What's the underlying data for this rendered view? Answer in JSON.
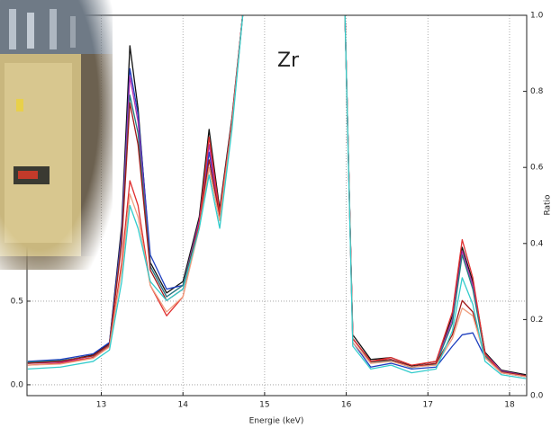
{
  "chart_data": {
    "type": "line",
    "annotation": "Zr",
    "xlabel": "Energie (keV)",
    "y2label": "Ratio",
    "x": [
      12.1,
      12.5,
      12.9,
      13.1,
      13.25,
      13.35,
      13.45,
      13.6,
      13.8,
      14.0,
      14.2,
      14.32,
      14.45,
      14.6,
      14.75,
      15.4,
      15.98,
      16.08,
      16.3,
      16.55,
      16.8,
      17.1,
      17.3,
      17.42,
      17.55,
      17.7,
      17.9,
      18.2
    ],
    "series": [
      {
        "color": "#111111",
        "axis": "y2",
        "values": [
          0.086,
          0.09,
          0.107,
          0.138,
          0.447,
          0.92,
          0.755,
          0.35,
          0.27,
          0.3,
          0.47,
          0.7,
          0.49,
          0.73,
          1.04,
          null,
          1.04,
          0.16,
          0.095,
          0.1,
          0.078,
          0.09,
          0.21,
          0.39,
          0.3,
          0.114,
          0.067,
          0.055
        ]
      },
      {
        "color": "#1f3fbf",
        "axis": "y2",
        "values": [
          0.09,
          0.095,
          0.11,
          0.14,
          0.43,
          0.86,
          0.74,
          0.37,
          0.28,
          0.29,
          0.45,
          0.64,
          0.48,
          0.72,
          1.04,
          null,
          1.04,
          0.14,
          0.075,
          0.085,
          0.07,
          0.075,
          0.13,
          0.16,
          0.165,
          0.1,
          0.06,
          0.05
        ]
      },
      {
        "color": "#b030b0",
        "axis": "y2",
        "values": [
          0.085,
          0.088,
          0.1,
          0.13,
          0.42,
          0.84,
          0.72,
          0.34,
          0.26,
          0.29,
          0.46,
          0.66,
          0.47,
          0.72,
          1.04,
          null,
          1.04,
          0.15,
          0.09,
          0.095,
          0.075,
          0.085,
          0.2,
          0.38,
          0.29,
          0.11,
          0.065,
          0.052
        ]
      },
      {
        "color": "#208080",
        "axis": "y2",
        "values": [
          0.088,
          0.092,
          0.104,
          0.134,
          0.41,
          0.79,
          0.69,
          0.34,
          0.26,
          0.29,
          0.45,
          0.6,
          0.46,
          0.71,
          1.04,
          null,
          1.04,
          0.15,
          0.088,
          0.092,
          0.074,
          0.083,
          0.19,
          0.37,
          0.28,
          0.105,
          0.063,
          0.05
        ]
      },
      {
        "color": "#a01818",
        "axis": "y2",
        "values": [
          0.085,
          0.09,
          0.105,
          0.135,
          0.4,
          0.77,
          0.66,
          0.33,
          0.25,
          0.28,
          0.45,
          0.62,
          0.47,
          0.72,
          1.04,
          null,
          1.04,
          0.15,
          0.09,
          0.095,
          0.075,
          0.085,
          0.16,
          0.25,
          0.22,
          0.1,
          0.062,
          0.052
        ]
      },
      {
        "color": "#e03030",
        "axis": "y2",
        "values": [
          0.08,
          0.085,
          0.1,
          0.13,
          0.35,
          0.565,
          0.5,
          0.29,
          0.21,
          0.26,
          0.45,
          0.68,
          0.48,
          0.72,
          1.04,
          null,
          1.04,
          0.15,
          0.09,
          0.1,
          0.08,
          0.09,
          0.22,
          0.41,
          0.31,
          0.11,
          0.06,
          0.05
        ]
      },
      {
        "color": "#f0a080",
        "axis": "y2",
        "values": [
          0.08,
          0.083,
          0.098,
          0.128,
          0.33,
          0.53,
          0.47,
          0.29,
          0.22,
          0.26,
          0.44,
          0.6,
          0.46,
          0.71,
          1.04,
          null,
          1.04,
          0.14,
          0.085,
          0.09,
          0.075,
          0.08,
          0.15,
          0.23,
          0.21,
          0.1,
          0.06,
          0.05
        ]
      },
      {
        "color": "#33cccc",
        "axis": "y2",
        "values": [
          0.07,
          0.075,
          0.09,
          0.12,
          0.3,
          0.5,
          0.44,
          0.3,
          0.25,
          0.28,
          0.44,
          0.58,
          0.44,
          0.7,
          1.04,
          null,
          1.04,
          0.13,
          0.07,
          0.08,
          0.06,
          0.07,
          0.17,
          0.31,
          0.24,
          0.09,
          0.055,
          0.045
        ]
      }
    ],
    "xlim": [
      12.09,
      18.21
    ],
    "xticks": [
      13,
      14,
      15,
      16,
      17,
      18
    ],
    "ylim": [
      -0.065,
      2.21
    ],
    "yticks": [
      {
        "value": 0,
        "label": "0.0"
      },
      {
        "value": 0.5,
        "label": "0.5"
      }
    ],
    "y2lim": [
      0,
      1.0
    ],
    "y2ticks": [
      {
        "value": 0,
        "label": "0.0"
      },
      0.2,
      0.4,
      0.6,
      0.8,
      {
        "value": 1.0,
        "label": "1.0"
      }
    ],
    "grid": true
  }
}
